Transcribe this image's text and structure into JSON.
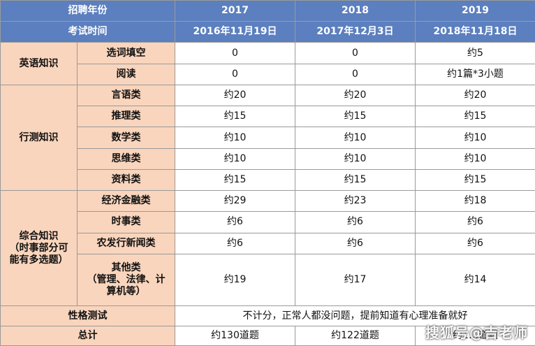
{
  "header": {
    "year_label": "招聘年份",
    "years": [
      "2017",
      "2018",
      "2019"
    ],
    "date_label": "考试时间",
    "dates": [
      "2016年11月19日",
      "2017年12月3日",
      "2018年11月18日"
    ]
  },
  "sections": [
    {
      "name": "英语知识",
      "rows": [
        {
          "label": "选词填空",
          "values": [
            "0",
            "0",
            "约5"
          ]
        },
        {
          "label": "阅读",
          "values": [
            "0",
            "0",
            "约1篇*3小题"
          ]
        }
      ]
    },
    {
      "name": "行测知识",
      "rows": [
        {
          "label": "言语类",
          "values": [
            "约20",
            "约20",
            "约20"
          ]
        },
        {
          "label": "推理类",
          "values": [
            "约15",
            "约15",
            "约15"
          ]
        },
        {
          "label": "数学类",
          "values": [
            "约10",
            "约10",
            "约10"
          ]
        },
        {
          "label": "思维类",
          "values": [
            "约10",
            "约10",
            "约10"
          ]
        },
        {
          "label": "资料类",
          "values": [
            "约15",
            "约15",
            "约15"
          ]
        }
      ]
    },
    {
      "name_lines": [
        "综合知识",
        "（时事部分可",
        "能有多选题）"
      ],
      "rows": [
        {
          "label": "经济金融类",
          "values": [
            "约29",
            "约23",
            "约18"
          ]
        },
        {
          "label": "时事类",
          "values": [
            "约6",
            "约6",
            "约6"
          ]
        },
        {
          "label": "农发行新闻类",
          "values": [
            "约6",
            "约6",
            "约6"
          ]
        },
        {
          "label_lines": [
            "其他类",
            "（管理、法律、计",
            "算机等）"
          ],
          "values": [
            "约19",
            "约17",
            "约14"
          ]
        }
      ]
    }
  ],
  "personality": {
    "label": "性格测试",
    "note": "不计分，正常人都没问题，提前知道有心理准备就好"
  },
  "total": {
    "label": "总计",
    "values": [
      "约130道题",
      "约122道题",
      "约1…道题"
    ]
  },
  "watermark": "搜狐号@吉老师"
}
